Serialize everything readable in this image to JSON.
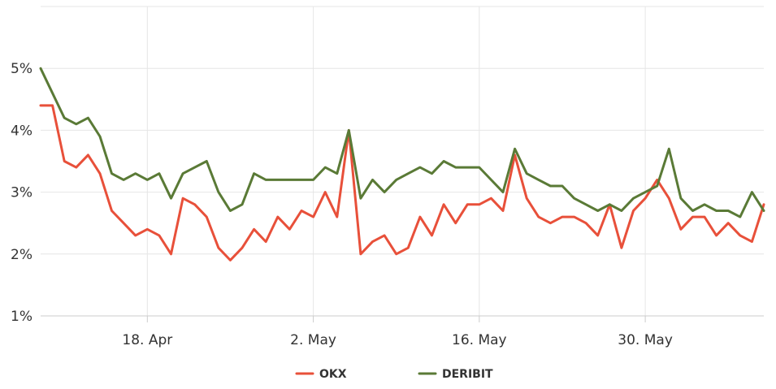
{
  "chart_data": {
    "type": "line",
    "title": "",
    "xlabel": "",
    "ylabel": "",
    "x_range": [
      "2025-04-09",
      "2025-06-09"
    ],
    "ylim": [
      1,
      6
    ],
    "y_ticks": [
      1,
      2,
      3,
      4,
      5
    ],
    "y_tick_labels": [
      "1%",
      "2%",
      "3%",
      "4%",
      "5%"
    ],
    "x_ticks": [
      "2025-04-18",
      "2025-05-02",
      "2025-05-16",
      "2025-05-30"
    ],
    "x_tick_labels": [
      "18. Apr",
      "2. May",
      "16. May",
      "30. May"
    ],
    "grid": true,
    "legend_position": "bottom-center",
    "x": [
      "2025-04-09",
      "2025-04-10",
      "2025-04-11",
      "2025-04-12",
      "2025-04-13",
      "2025-04-14",
      "2025-04-15",
      "2025-04-16",
      "2025-04-17",
      "2025-04-18",
      "2025-04-19",
      "2025-04-20",
      "2025-04-21",
      "2025-04-22",
      "2025-04-23",
      "2025-04-24",
      "2025-04-25",
      "2025-04-26",
      "2025-04-27",
      "2025-04-28",
      "2025-04-29",
      "2025-04-30",
      "2025-05-01",
      "2025-05-02",
      "2025-05-03",
      "2025-05-04",
      "2025-05-05",
      "2025-05-06",
      "2025-05-07",
      "2025-05-08",
      "2025-05-09",
      "2025-05-10",
      "2025-05-11",
      "2025-05-12",
      "2025-05-13",
      "2025-05-14",
      "2025-05-15",
      "2025-05-16",
      "2025-05-17",
      "2025-05-18",
      "2025-05-19",
      "2025-05-20",
      "2025-05-21",
      "2025-05-22",
      "2025-05-23",
      "2025-05-24",
      "2025-05-25",
      "2025-05-26",
      "2025-05-27",
      "2025-05-28",
      "2025-05-29",
      "2025-05-30",
      "2025-05-31",
      "2025-06-01",
      "2025-06-02",
      "2025-06-03",
      "2025-06-04",
      "2025-06-05",
      "2025-06-06",
      "2025-06-07",
      "2025-06-08",
      "2025-06-09"
    ],
    "series": [
      {
        "name": "OKX",
        "color": "#e8503a",
        "values": [
          4.4,
          4.4,
          3.5,
          3.4,
          3.6,
          3.3,
          2.7,
          2.5,
          2.3,
          2.4,
          2.3,
          2.0,
          2.9,
          2.8,
          2.6,
          2.1,
          1.9,
          2.1,
          2.4,
          2.2,
          2.6,
          2.4,
          2.7,
          2.6,
          3.0,
          2.6,
          4.0,
          2.0,
          2.2,
          2.3,
          2.0,
          2.1,
          2.6,
          2.3,
          2.8,
          2.5,
          2.8,
          2.8,
          2.9,
          2.7,
          3.6,
          2.9,
          2.6,
          2.5,
          2.6,
          2.6,
          2.5,
          2.3,
          2.8,
          2.1,
          2.7,
          2.9,
          3.2,
          2.9,
          2.4,
          2.6,
          2.6,
          2.3,
          2.5,
          2.3,
          2.2,
          2.8
        ]
      },
      {
        "name": "DERIBIT",
        "color": "#5a7a36",
        "values": [
          5.0,
          4.6,
          4.2,
          4.1,
          4.2,
          3.9,
          3.3,
          3.2,
          3.3,
          3.2,
          3.3,
          2.9,
          3.3,
          3.4,
          3.5,
          3.0,
          2.7,
          2.8,
          3.3,
          3.2,
          3.2,
          3.2,
          3.2,
          3.2,
          3.4,
          3.3,
          4.0,
          2.9,
          3.2,
          3.0,
          3.2,
          3.3,
          3.4,
          3.3,
          3.5,
          3.4,
          3.4,
          3.4,
          3.2,
          3.0,
          3.7,
          3.3,
          3.2,
          3.1,
          3.1,
          2.9,
          2.8,
          2.7,
          2.8,
          2.7,
          2.9,
          3.0,
          3.1,
          3.7,
          2.9,
          2.7,
          2.8,
          2.7,
          2.7,
          2.6,
          3.0,
          2.7
        ]
      }
    ]
  }
}
